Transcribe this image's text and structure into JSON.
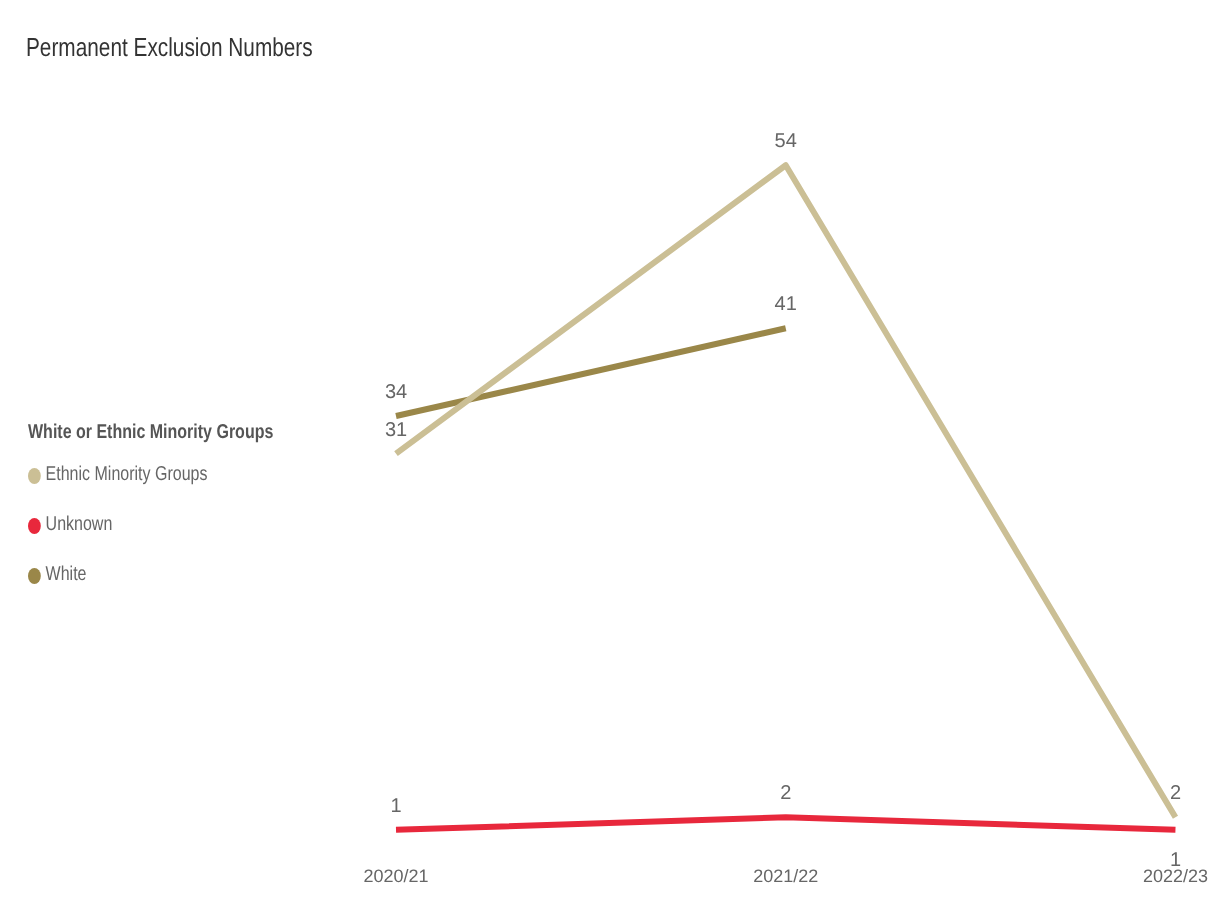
{
  "chart_data": {
    "type": "line",
    "title": "Permanent Exclusion Numbers",
    "legend_title": "White or Ethnic Minority Groups",
    "categories": [
      "2020/21",
      "2021/22",
      "2022/23"
    ],
    "series": [
      {
        "name": "Ethnic Minority Groups",
        "color": "#cbbf95",
        "values": [
          31,
          54,
          2
        ]
      },
      {
        "name": "Unknown",
        "color": "#e8283c",
        "values": [
          1,
          2,
          1
        ]
      },
      {
        "name": "White",
        "color": "#9a8749",
        "values": [
          34,
          41,
          null
        ]
      }
    ],
    "relative": false,
    "data_labels": true,
    "grid": false,
    "legend": "left",
    "marker": "none",
    "line_style": "solid"
  }
}
